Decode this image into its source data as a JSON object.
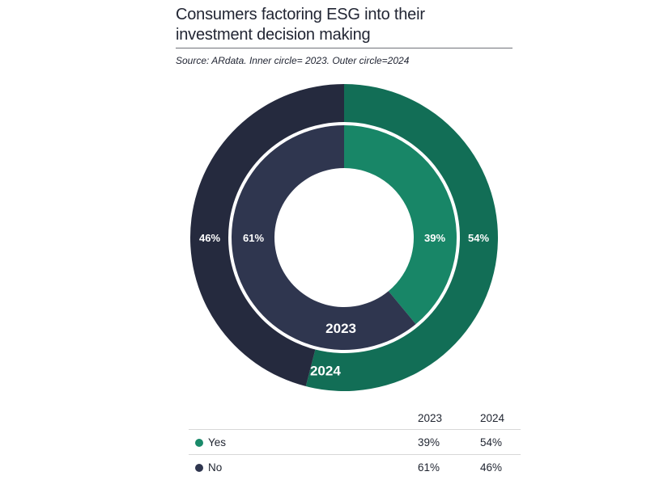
{
  "header": {
    "title_line1": "Consumers factoring ESG into their",
    "title_line2": "investment decision making",
    "source": "Source: ARdata. Inner circle= 2023. Outer circle=2024"
  },
  "chart_data": {
    "type": "pie",
    "title": "Consumers factoring ESG into their investment decision making",
    "categories": [
      "Yes",
      "No"
    ],
    "series": [
      {
        "name": "2023",
        "ring": "inner",
        "values": [
          39,
          61
        ],
        "labels": [
          "39%",
          "61%"
        ]
      },
      {
        "name": "2024",
        "ring": "outer",
        "values": [
          54,
          46
        ],
        "labels": [
          "54%",
          "46%"
        ]
      }
    ],
    "colors": {
      "yes_outer": "#126e56",
      "yes_inner": "#188667",
      "no_outer": "#252a3e",
      "no_inner": "#2f364f"
    }
  },
  "legend": {
    "columns": [
      "2023",
      "2024"
    ],
    "rows": [
      {
        "label": "Yes",
        "color": "#1a8a6a",
        "v2023": "39%",
        "v2024": "54%"
      },
      {
        "label": "No",
        "color": "#2f364f",
        "v2023": "61%",
        "v2024": "46%"
      }
    ]
  }
}
